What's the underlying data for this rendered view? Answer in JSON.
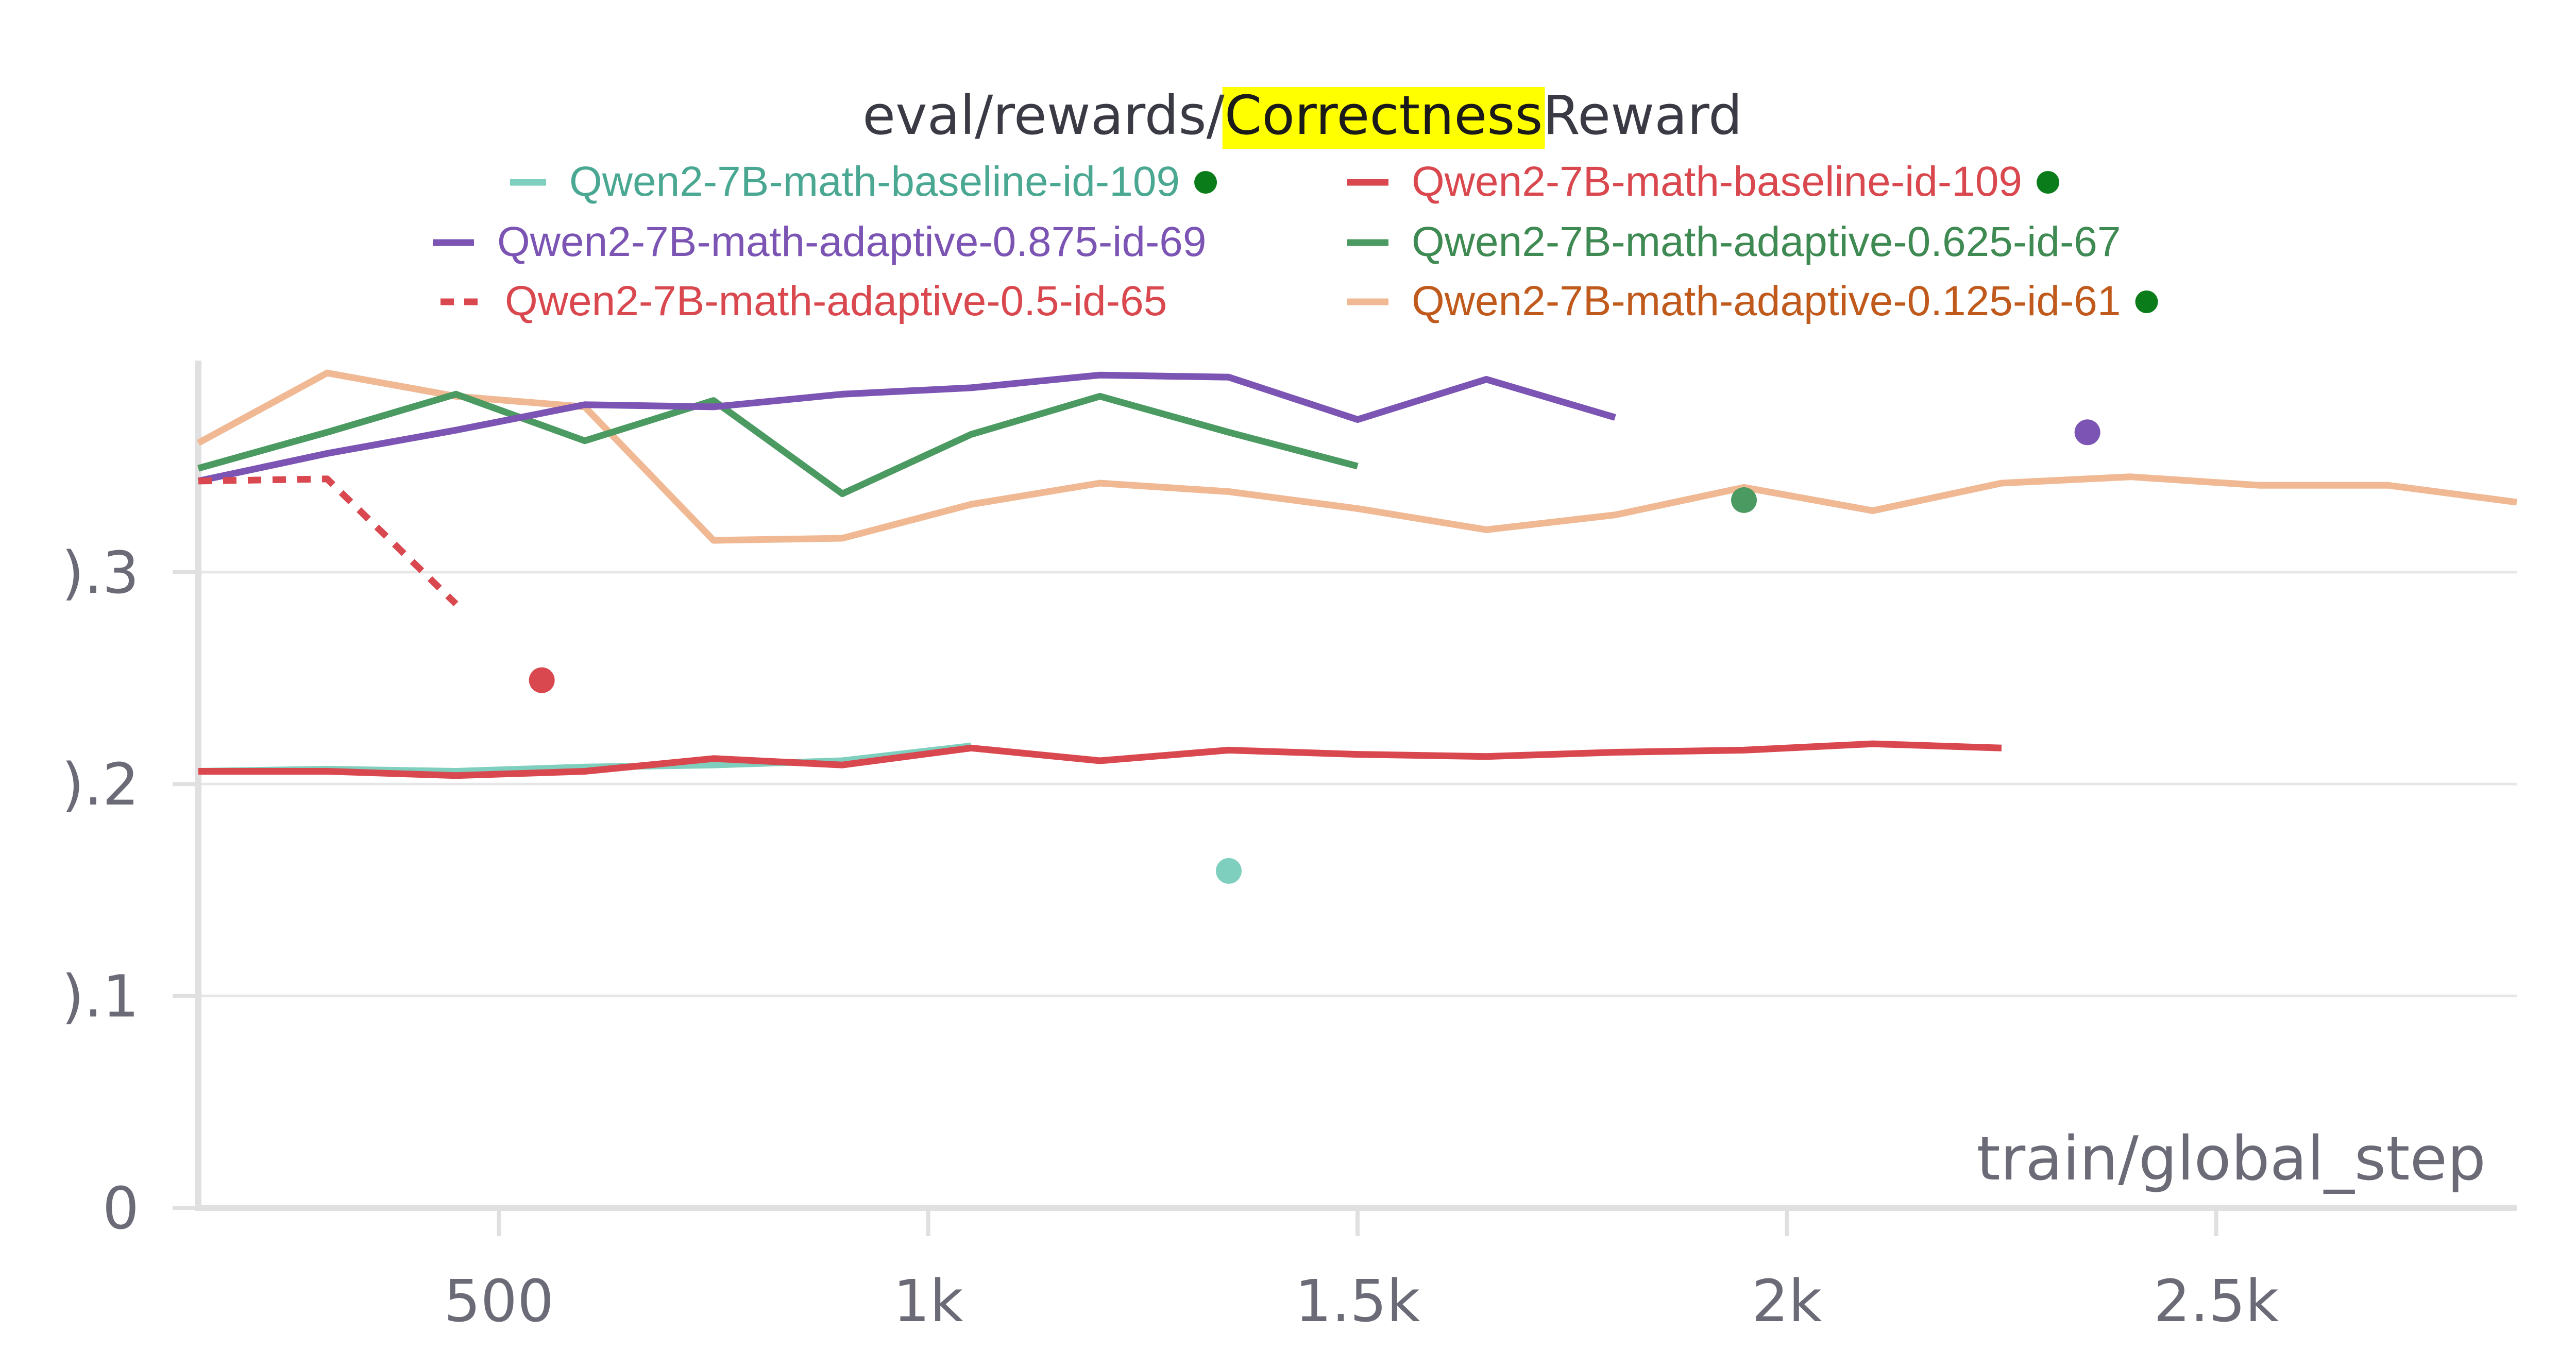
{
  "chart_data": {
    "type": "line",
    "title": "eval/rewards/CorrectnessReward",
    "title_parts": {
      "before": "eval/rewards/",
      "highlight": "Correctness",
      "after": "Reward"
    },
    "title_highlight_color": "#ffff00",
    "xlabel": "train/global_step",
    "ylabel": "",
    "xlim": [
      150,
      2850
    ],
    "ylim": [
      0,
      0.395
    ],
    "x_ticks": [
      500,
      1000,
      1500,
      2000,
      2500
    ],
    "x_tick_labels": [
      "500",
      "1k",
      "1.5k",
      "2k",
      "2.5k"
    ],
    "y_ticks": [
      0,
      0.1,
      0.2,
      0.3
    ],
    "y_tick_labels": [
      "0",
      ").1",
      ").2",
      ").3"
    ],
    "grid": true,
    "legend_position": "top",
    "series": [
      {
        "name": "Qwen2-7B-math-baseline-id-109",
        "color": "#7ecfbd",
        "text_color": "#4aa892",
        "dash": "solid",
        "legend_swatch": "short",
        "legend_dot": true,
        "x": [
          150,
          300,
          450,
          600,
          750,
          900,
          1050
        ],
        "y": [
          0.206,
          0.207,
          0.206,
          0.208,
          0.209,
          0.211,
          0.218
        ],
        "points": [
          {
            "x": 1350,
            "y": 0.159
          }
        ]
      },
      {
        "name": "Qwen2-7B-math-baseline-id-109",
        "color": "#d9484e",
        "text_color": "#d9484e",
        "dash": "solid",
        "legend_swatch": "long",
        "legend_dot": true,
        "x": [
          150,
          300,
          450,
          600,
          750,
          900,
          1050,
          1200,
          1350,
          1500,
          1650,
          1800,
          1950,
          2100,
          2250
        ],
        "y": [
          0.206,
          0.206,
          0.204,
          0.206,
          0.212,
          0.209,
          0.217,
          0.211,
          0.216,
          0.214,
          0.213,
          0.215,
          0.216,
          0.219,
          0.217
        ],
        "points": [
          {
            "x": 550,
            "y": 0.249
          }
        ]
      },
      {
        "name": "Qwen2-7B-math-adaptive-0.875-id-69",
        "color": "#7b54b4",
        "text_color": "#7b54b4",
        "dash": "solid",
        "legend_swatch": "long",
        "legend_dot": false,
        "x": [
          150,
          300,
          450,
          600,
          750,
          900,
          1050,
          1200,
          1350,
          1500,
          1650,
          1800
        ],
        "y": [
          0.343,
          0.356,
          0.367,
          0.379,
          0.378,
          0.384,
          0.387,
          0.393,
          0.392,
          0.372,
          0.391,
          0.373
        ],
        "points": [
          {
            "x": 2350,
            "y": 0.366
          }
        ]
      },
      {
        "name": "Qwen2-7B-math-adaptive-0.625-id-67",
        "color": "#4b9a61",
        "text_color": "#3f8a52",
        "dash": "solid",
        "legend_swatch": "long",
        "legend_dot": false,
        "x": [
          150,
          300,
          450,
          600,
          750,
          900,
          1050,
          1200,
          1350,
          1500
        ],
        "y": [
          0.349,
          0.366,
          0.384,
          0.362,
          0.381,
          0.337,
          0.365,
          0.383,
          0.366,
          0.35
        ],
        "points": [
          {
            "x": 1950,
            "y": 0.334
          }
        ]
      },
      {
        "name": "Qwen2-7B-math-adaptive-0.5-id-65",
        "color": "#d9484e",
        "text_color": "#d9484e",
        "dash": "dashed",
        "legend_swatch": "dashed",
        "legend_dot": false,
        "x": [
          150,
          300,
          450
        ],
        "y": [
          0.343,
          0.344,
          0.285
        ],
        "points": []
      },
      {
        "name": "Qwen2-7B-math-adaptive-0.125-id-61",
        "color": "#f0b994",
        "text_color": "#c05a1c",
        "dash": "solid",
        "legend_swatch": "long",
        "legend_dot": true,
        "x": [
          150,
          300,
          450,
          600,
          750,
          900,
          1050,
          1200,
          1350,
          1500,
          1650,
          1800,
          1950,
          2100,
          2250,
          2400,
          2550,
          2700,
          2850
        ],
        "y": [
          0.361,
          0.394,
          0.383,
          0.378,
          0.315,
          0.316,
          0.332,
          0.342,
          0.338,
          0.33,
          0.32,
          0.327,
          0.34,
          0.329,
          0.342,
          0.345,
          0.341,
          0.341,
          0.333
        ],
        "points": []
      }
    ]
  },
  "legend_dot_color": "#0a7d1a",
  "colors": {
    "grid": "#e6e6e6",
    "axis": "#e0e0e0"
  }
}
